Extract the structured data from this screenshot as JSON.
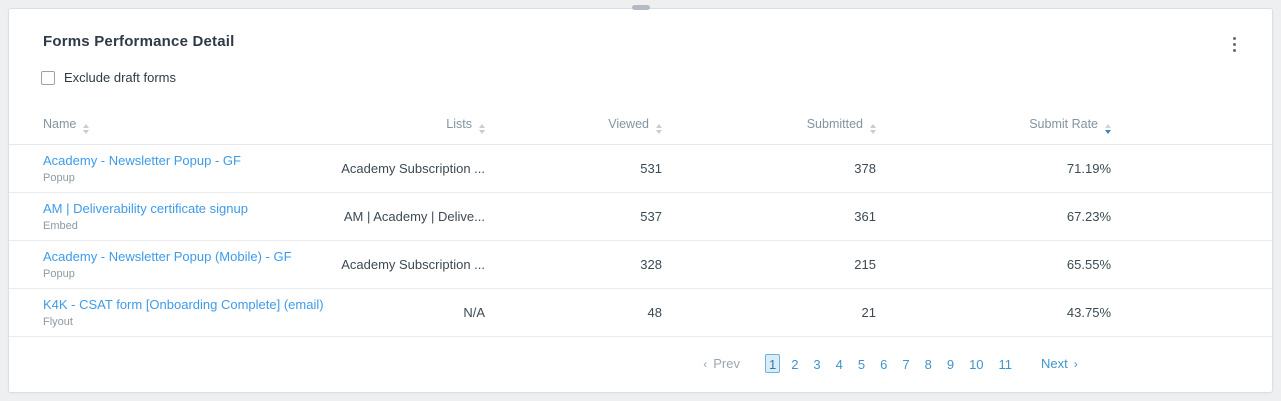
{
  "card": {
    "title": "Forms Performance Detail",
    "checkbox": {
      "label": "Exclude draft forms",
      "checked": false
    }
  },
  "table": {
    "columns": [
      {
        "key": "name",
        "label": "Name",
        "align": "left",
        "sorted": "none"
      },
      {
        "key": "lists",
        "label": "Lists",
        "align": "right",
        "sorted": "none"
      },
      {
        "key": "viewed",
        "label": "Viewed",
        "align": "right",
        "sorted": "none"
      },
      {
        "key": "submitted",
        "label": "Submitted",
        "align": "right",
        "sorted": "none"
      },
      {
        "key": "submit_rate",
        "label": "Submit Rate",
        "align": "right",
        "sorted": "desc"
      }
    ],
    "rows": [
      {
        "name": "Academy - Newsletter Popup - GF",
        "type": "Popup",
        "lists": "Academy Subscription ...",
        "viewed": "531",
        "submitted": "378",
        "submit_rate": "71.19%"
      },
      {
        "name": "AM | Deliverability certificate signup",
        "type": "Embed",
        "lists": "AM | Academy | Delive...",
        "viewed": "537",
        "submitted": "361",
        "submit_rate": "67.23%"
      },
      {
        "name": "Academy - Newsletter Popup (Mobile) - GF",
        "type": "Popup",
        "lists": "Academy Subscription ...",
        "viewed": "328",
        "submitted": "215",
        "submit_rate": "65.55%"
      },
      {
        "name": "K4K - CSAT form [Onboarding Complete] (email)",
        "type": "Flyout",
        "lists": "N/A",
        "viewed": "48",
        "submitted": "21",
        "submit_rate": "43.75%"
      }
    ]
  },
  "pagination": {
    "prev_label": "Prev",
    "next_label": "Next",
    "prev_chevron": "‹",
    "next_chevron": "›",
    "pages": [
      "1",
      "2",
      "3",
      "4",
      "5",
      "6",
      "7",
      "8",
      "9",
      "10",
      "11"
    ],
    "active_page": "1"
  },
  "icons": {
    "menu": "kebab-vertical-icon",
    "sort": "sort-arrows-icon"
  },
  "colors": {
    "link_blue": "#3d9be9",
    "active_sort_blue": "#2f86d3",
    "page_active_bg": "#d9ecf8",
    "page_active_border": "#71b2dd",
    "header_gray": "#8494a0",
    "text_dark": "#2e3b47",
    "background": "#edeff1"
  }
}
